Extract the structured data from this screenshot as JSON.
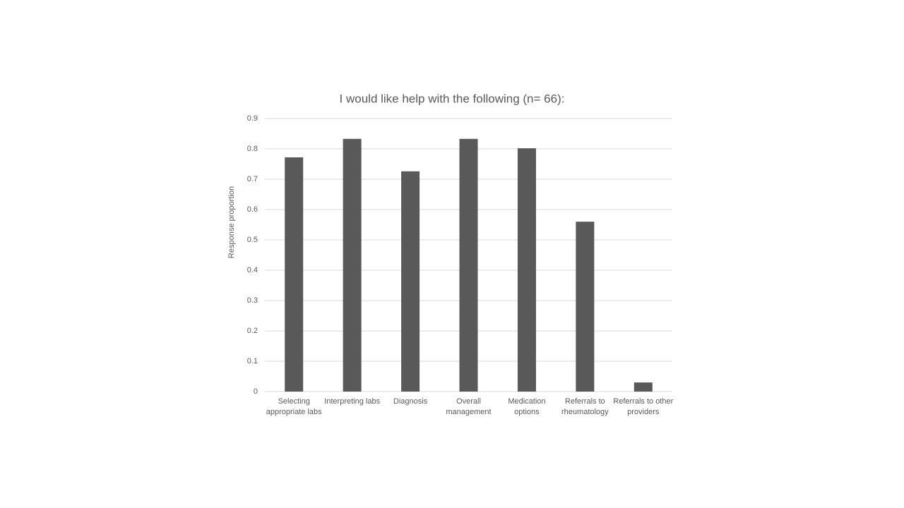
{
  "chart_data": {
    "type": "bar",
    "title": "I would like help with the following (n= 66):",
    "y_label": "Response proportion",
    "categories": [
      "Selecting appropriate labs",
      "Interpreting labs",
      "Diagnosis",
      "Overall management",
      "Medication options",
      "Referrals to rheumatology",
      "Referrals to other providers"
    ],
    "values": [
      0.772,
      0.833,
      0.726,
      0.833,
      0.802,
      0.56,
      0.03
    ],
    "color": "#595959",
    "ylim": [
      0,
      0.9
    ],
    "yticks": [
      0,
      0.1,
      0.2,
      0.3,
      0.4,
      0.5,
      0.6,
      0.7,
      0.8,
      0.9
    ],
    "grid": true
  }
}
